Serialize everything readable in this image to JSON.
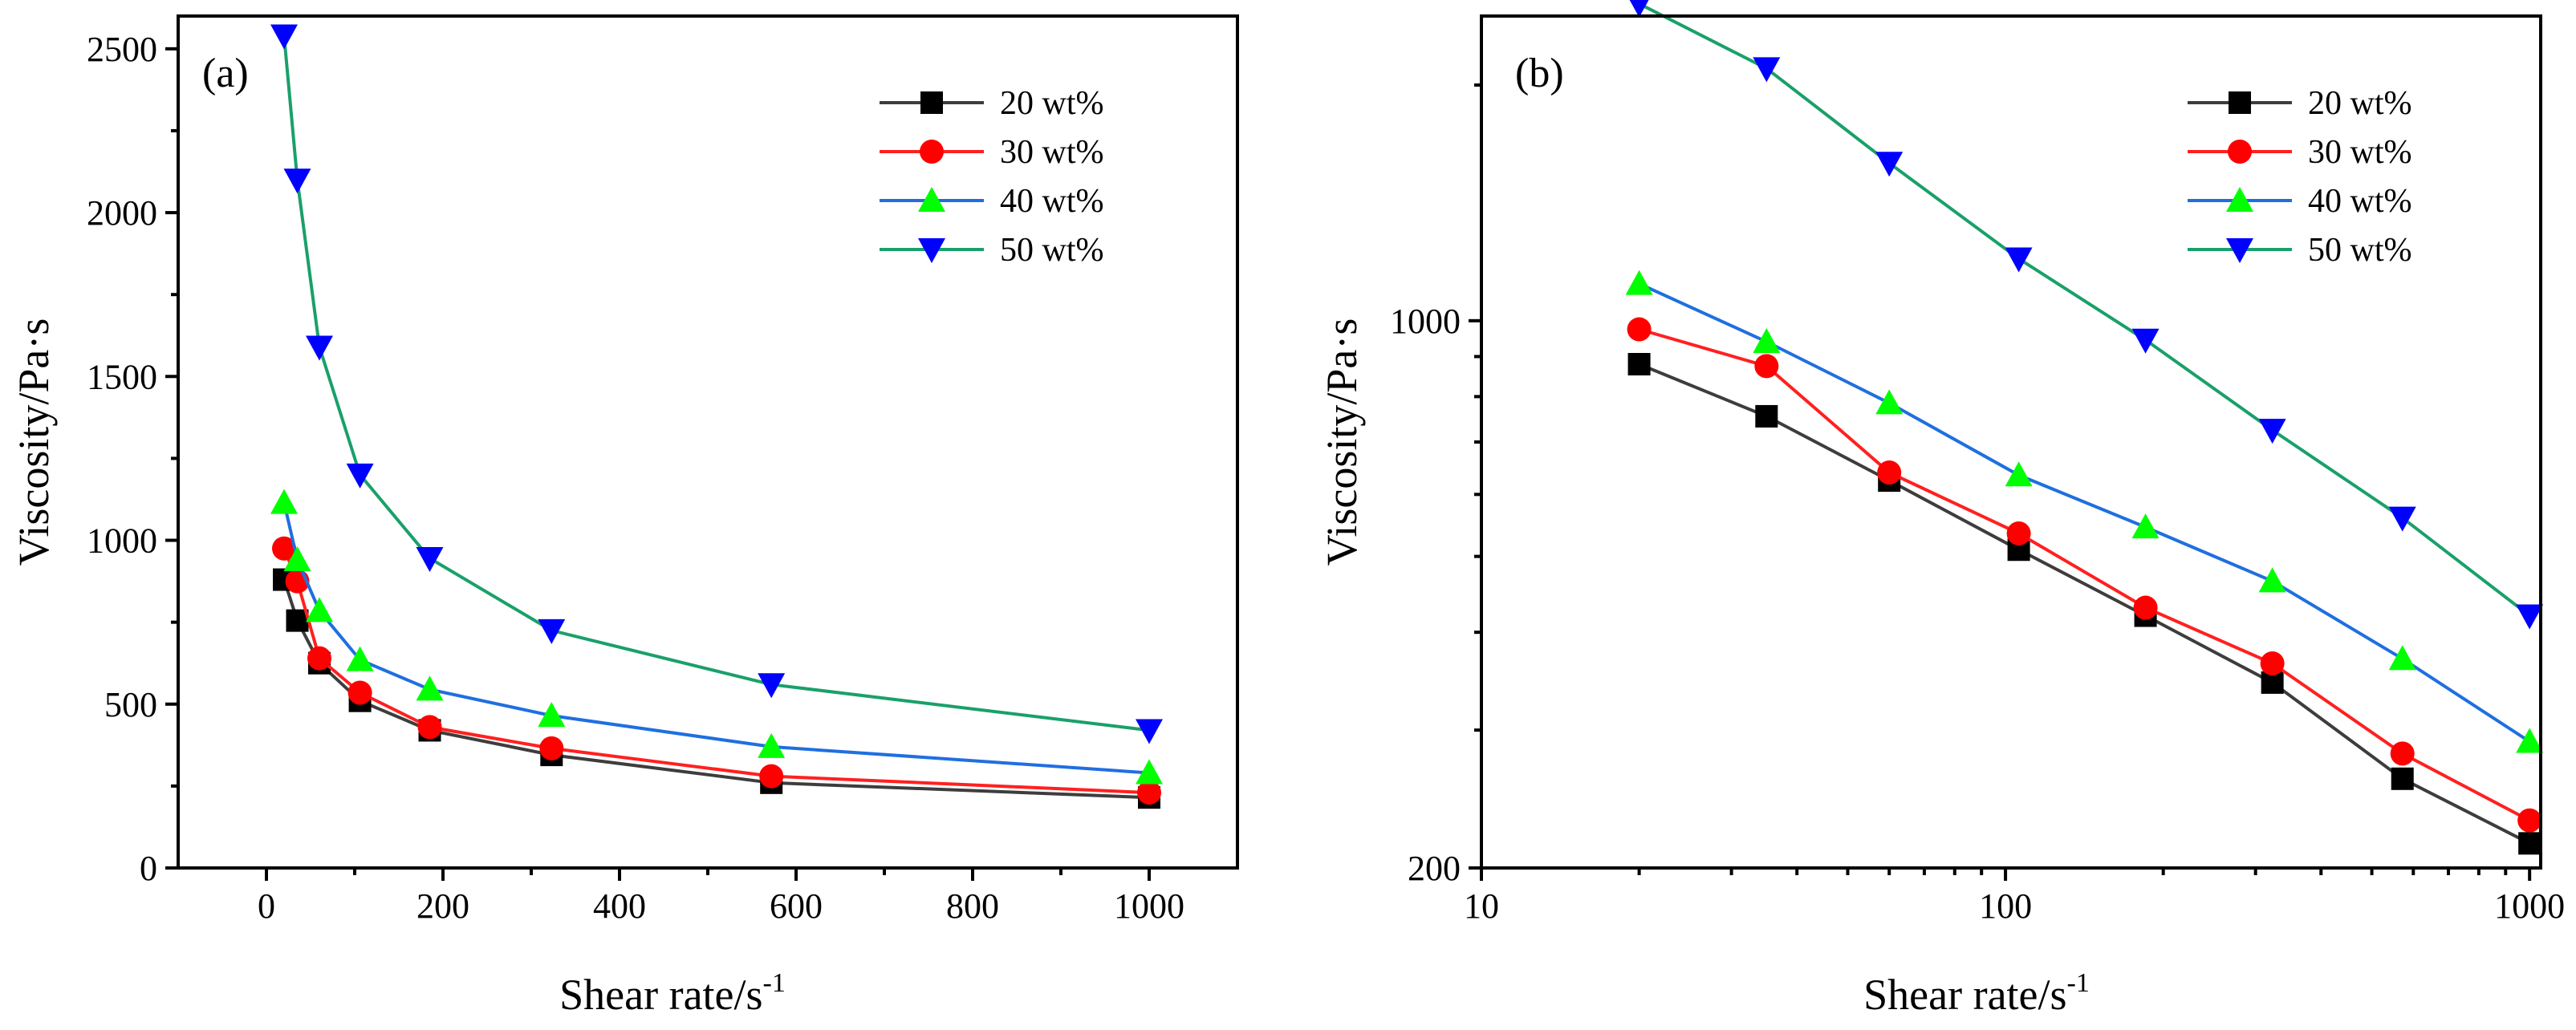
{
  "chart_data": [
    {
      "panel": "(a)",
      "type": "line",
      "scale": "linear",
      "xlabel": "Shear rate/s",
      "xlabel_sup": "-1",
      "ylabel": "Viscosity/Pa·s",
      "xlim": [
        -100,
        1100
      ],
      "ylim": [
        0,
        2600
      ],
      "xticks": [
        0,
        200,
        400,
        600,
        800,
        1000
      ],
      "xtick_labels": [
        "0",
        "200",
        "400",
        "600",
        "800",
        "1000"
      ],
      "yticks": [
        0,
        500,
        1000,
        1500,
        2000,
        2500
      ],
      "ytick_labels": [
        "0",
        "500",
        "1000",
        "1500",
        "2000",
        "2500"
      ],
      "legend_position": "top-right",
      "x": [
        20,
        35,
        60,
        106,
        185,
        323,
        572,
        1000
      ],
      "series": [
        {
          "name": "20 wt%",
          "marker": "square",
          "line_color": "#3d3d3d",
          "marker_color": "#000000",
          "values": [
            880,
            755,
            625,
            510,
            420,
            345,
            260,
            215
          ]
        },
        {
          "name": "30 wt%",
          "marker": "circle",
          "line_color": "#ff2020",
          "marker_color": "#ff0000",
          "values": [
            975,
            875,
            640,
            535,
            430,
            365,
            280,
            230
          ]
        },
        {
          "name": "40 wt%",
          "marker": "triangle-up",
          "line_color": "#1f6fe0",
          "marker_color": "#00ff00",
          "values": [
            1115,
            940,
            785,
            635,
            545,
            465,
            370,
            290
          ]
        },
        {
          "name": "50 wt%",
          "marker": "triangle-down",
          "line_color": "#1aa06a",
          "marker_color": "#0000ff",
          "values": [
            2540,
            2100,
            1590,
            1200,
            945,
            725,
            560,
            420
          ]
        }
      ]
    },
    {
      "panel": "(b)",
      "type": "line",
      "scale": "log-log",
      "xlabel": "Shear rate/s",
      "xlabel_sup": "-1",
      "ylabel": "Viscosity/Pa·s",
      "xlim": [
        10,
        1050
      ],
      "ylim": [
        200,
        2450
      ],
      "xticks": [
        10,
        100,
        1000
      ],
      "xtick_labels": [
        "10",
        "100",
        "1000"
      ],
      "yticks": [
        200,
        1000
      ],
      "ytick_labels": [
        "200",
        "1000"
      ],
      "legend_position": "top-right",
      "x": [
        20,
        35,
        60,
        106,
        185,
        323,
        572,
        1000
      ],
      "series": [
        {
          "name": "20 wt%",
          "marker": "square",
          "line_color": "#3d3d3d",
          "marker_color": "#000000",
          "values": [
            880,
            755,
            625,
            510,
            420,
            345,
            260,
            215
          ]
        },
        {
          "name": "30 wt%",
          "marker": "circle",
          "line_color": "#ff2020",
          "marker_color": "#ff0000",
          "values": [
            975,
            875,
            640,
            535,
            430,
            365,
            280,
            230
          ]
        },
        {
          "name": "40 wt%",
          "marker": "triangle-up",
          "line_color": "#1f6fe0",
          "marker_color": "#00ff00",
          "values": [
            1115,
            940,
            785,
            635,
            545,
            465,
            370,
            290
          ]
        },
        {
          "name": "50 wt%",
          "marker": "triangle-down",
          "line_color": "#1aa06a",
          "marker_color": "#0000ff",
          "values": [
            2540,
            2100,
            1590,
            1200,
            945,
            725,
            560,
            420
          ]
        }
      ]
    }
  ]
}
